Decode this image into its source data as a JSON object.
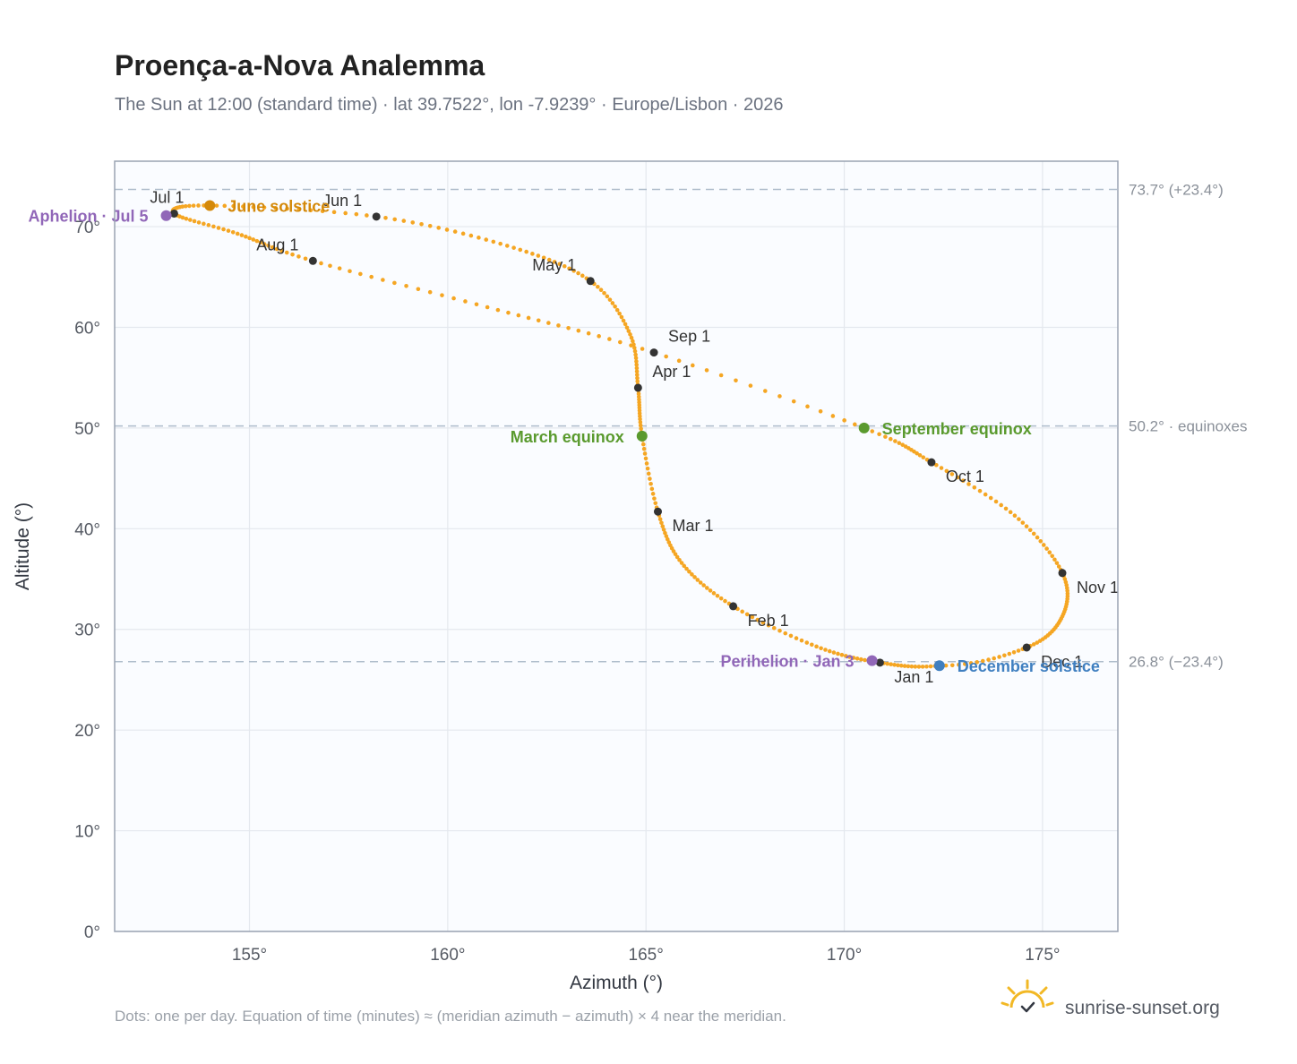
{
  "header": {
    "title": "Proença-a-Nova Analemma",
    "subtitle": "The Sun at 12:00 (standard time) · lat 39.7522°, lon -7.9239° · Europe/Lisbon · 2026"
  },
  "footer": {
    "note": "Dots: one per day. Equation of time (minutes) ≈ (meridian azimuth − azimuth) × 4 near the meridian.",
    "brand": "sunrise-sunset.org"
  },
  "colors": {
    "curve": "#f5a623",
    "month_marker": "#333333",
    "solstice_june": "#d4890a",
    "equinox": "#5a9a2e",
    "solstice_december": "#3f7fc0",
    "apsis": "#9167b8",
    "reference_line": "#aebccb",
    "plot_background": "#fafcff",
    "grid": "#e4e8ee"
  },
  "chart_data": {
    "type": "scatter",
    "title": "Proença-a-Nova Analemma",
    "xlabel": "Azimuth (°)",
    "ylabel": "Altitude (°)",
    "xlim": [
      151.6,
      176.9
    ],
    "ylim": [
      0,
      76.5
    ],
    "x_ticks": [
      155,
      160,
      165,
      170,
      175
    ],
    "x_tick_labels": [
      "155°",
      "160°",
      "165°",
      "170°",
      "175°"
    ],
    "y_ticks": [
      0,
      10,
      20,
      30,
      40,
      50,
      60,
      70
    ],
    "y_tick_labels": [
      "0°",
      "10°",
      "20°",
      "30°",
      "40°",
      "50°",
      "60°",
      "70°"
    ],
    "grid": true,
    "reference_lines": [
      {
        "y": 73.7,
        "label": "73.7° (+23.4°)"
      },
      {
        "y": 50.2,
        "label": "50.2° · equinoxes"
      },
      {
        "y": 26.8,
        "label": "26.8° (−23.4°)"
      }
    ],
    "path_note": "one dot per day, curve through these points in date order",
    "path": [
      {
        "date": "Jan 1",
        "x": 170.9,
        "y": 26.7
      },
      {
        "date": "Jan 15",
        "x": 169.3,
        "y": 28.3
      },
      {
        "date": "Feb 1",
        "x": 167.2,
        "y": 32.3
      },
      {
        "date": "Feb 15",
        "x": 165.9,
        "y": 36.6
      },
      {
        "date": "Mar 1",
        "x": 165.3,
        "y": 41.7
      },
      {
        "date": "Mar 20",
        "x": 164.9,
        "y": 49.2
      },
      {
        "date": "Apr 1",
        "x": 164.8,
        "y": 54.0
      },
      {
        "date": "Apr 15",
        "x": 164.6,
        "y": 59.3
      },
      {
        "date": "May 1",
        "x": 163.6,
        "y": 64.6
      },
      {
        "date": "May 15",
        "x": 161.5,
        "y": 68.1
      },
      {
        "date": "Jun 1",
        "x": 158.2,
        "y": 71.0
      },
      {
        "date": "Jun 21",
        "x": 154.0,
        "y": 72.1
      },
      {
        "date": "Jul 1",
        "x": 153.1,
        "y": 71.3
      },
      {
        "date": "Jul 15",
        "x": 154.7,
        "y": 69.3
      },
      {
        "date": "Aug 1",
        "x": 156.6,
        "y": 66.6
      },
      {
        "date": "Aug 15",
        "x": 161.0,
        "y": 62.0
      },
      {
        "date": "Sep 1",
        "x": 165.2,
        "y": 57.5
      },
      {
        "date": "Sep 22",
        "x": 170.5,
        "y": 50.0
      },
      {
        "date": "Oct 1",
        "x": 172.2,
        "y": 46.6
      },
      {
        "date": "Oct 15",
        "x": 174.3,
        "y": 41.3
      },
      {
        "date": "Nov 1",
        "x": 175.5,
        "y": 35.6
      },
      {
        "date": "Nov 15",
        "x": 175.5,
        "y": 31.3
      },
      {
        "date": "Dec 1",
        "x": 174.6,
        "y": 28.2
      },
      {
        "date": "Dec 21",
        "x": 172.4,
        "y": 26.4
      },
      {
        "date": "Jan 1",
        "x": 170.9,
        "y": 26.7
      }
    ],
    "month_markers": [
      {
        "label": "Jan 1",
        "x": 170.9,
        "y": 26.7,
        "anchor": "below-right"
      },
      {
        "label": "Feb 1",
        "x": 167.2,
        "y": 32.3,
        "anchor": "below-right"
      },
      {
        "label": "Mar 1",
        "x": 165.3,
        "y": 41.7,
        "anchor": "below-right"
      },
      {
        "label": "Apr 1",
        "x": 164.8,
        "y": 54.0,
        "anchor": "above-right"
      },
      {
        "label": "May 1",
        "x": 163.6,
        "y": 64.6,
        "anchor": "above-left"
      },
      {
        "label": "Jun 1",
        "x": 158.2,
        "y": 71.0,
        "anchor": "above-left"
      },
      {
        "label": "Jul 1",
        "x": 153.1,
        "y": 71.3,
        "anchor": "above"
      },
      {
        "label": "Aug 1",
        "x": 156.6,
        "y": 66.6,
        "anchor": "above-left"
      },
      {
        "label": "Sep 1",
        "x": 165.2,
        "y": 57.5,
        "anchor": "above-right"
      },
      {
        "label": "Oct 1",
        "x": 172.2,
        "y": 46.6,
        "anchor": "below-right"
      },
      {
        "label": "Nov 1",
        "x": 175.5,
        "y": 35.6,
        "anchor": "below-right"
      },
      {
        "label": "Dec 1",
        "x": 174.6,
        "y": 28.2,
        "anchor": "below-right"
      }
    ],
    "events": [
      {
        "label": "June solstice",
        "x": 154.0,
        "y": 72.1,
        "color": "#d4890a",
        "side": "right"
      },
      {
        "label": "March equinox",
        "x": 164.9,
        "y": 49.2,
        "color": "#5a9a2e",
        "side": "left"
      },
      {
        "label": "September equinox",
        "x": 170.5,
        "y": 50.0,
        "color": "#5a9a2e",
        "side": "right"
      },
      {
        "label": "December solstice",
        "x": 172.4,
        "y": 26.4,
        "color": "#3f7fc0",
        "side": "right"
      },
      {
        "label": "Aphelion · Jul 5",
        "x": 152.9,
        "y": 71.1,
        "color": "#9167b8",
        "side": "left"
      },
      {
        "label": "Perihelion · Jan 3",
        "x": 170.7,
        "y": 26.9,
        "color": "#9167b8",
        "side": "left"
      }
    ]
  }
}
